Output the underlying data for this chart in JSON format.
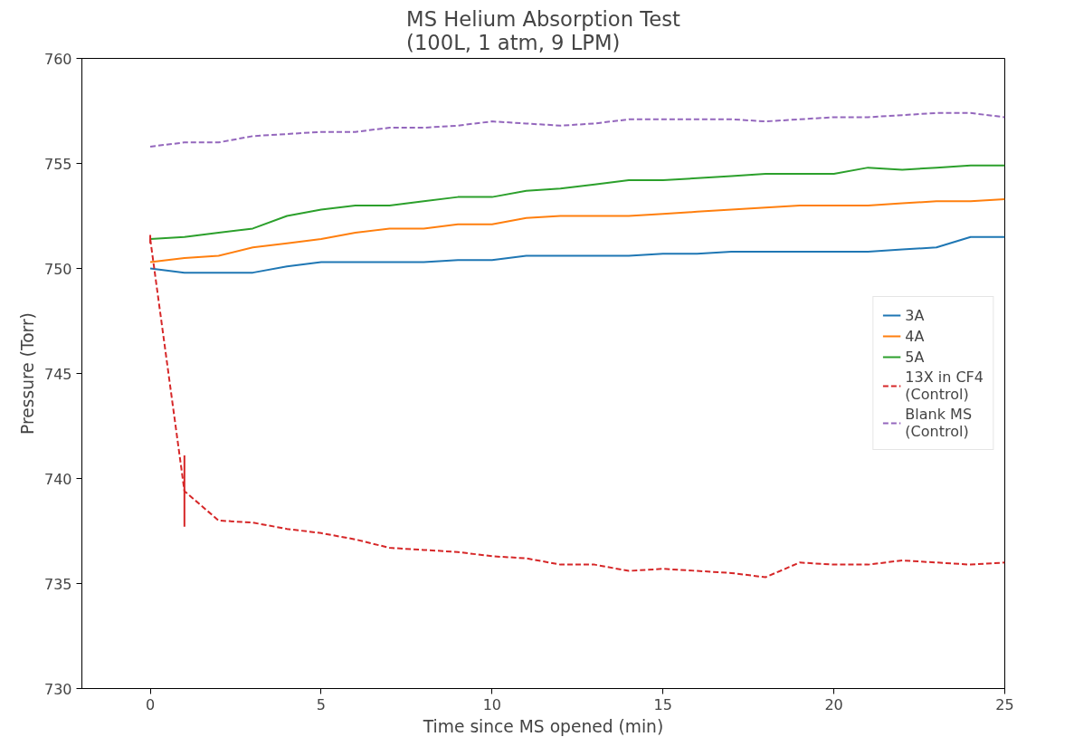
{
  "chart_data": {
    "type": "line",
    "title": "MS Helium Absorption Test\n(100L, 1 atm, 9 LPM)",
    "xlabel": "Time since MS opened (min)",
    "ylabel": "Pressure (Torr)",
    "x": [
      0,
      1,
      2,
      3,
      4,
      5,
      6,
      7,
      8,
      9,
      10,
      11,
      12,
      13,
      14,
      15,
      16,
      17,
      18,
      19,
      20,
      21,
      22,
      23,
      24,
      25
    ],
    "xlim": [
      -2,
      25
    ],
    "xticks": [
      0,
      5,
      10,
      15,
      20,
      25
    ],
    "ylim": [
      730,
      760
    ],
    "yticks": [
      730,
      735,
      740,
      745,
      750,
      755,
      760
    ],
    "grid": false,
    "legend": "center right",
    "series": [
      {
        "name": "3A",
        "color": "#1f77b4",
        "line_style": "solid",
        "values": [
          750.0,
          749.8,
          749.8,
          749.8,
          750.1,
          750.3,
          750.3,
          750.3,
          750.3,
          750.4,
          750.4,
          750.6,
          750.6,
          750.6,
          750.6,
          750.7,
          750.7,
          750.8,
          750.8,
          750.8,
          750.8,
          750.8,
          750.9,
          751.0,
          751.5,
          751.5
        ]
      },
      {
        "name": "4A",
        "color": "#ff7f0e",
        "line_style": "solid",
        "values": [
          750.3,
          750.5,
          750.6,
          751.0,
          751.2,
          751.4,
          751.7,
          751.9,
          751.9,
          752.1,
          752.1,
          752.4,
          752.5,
          752.5,
          752.5,
          752.6,
          752.7,
          752.8,
          752.9,
          753.0,
          753.0,
          753.0,
          753.1,
          753.2,
          753.2,
          753.3
        ]
      },
      {
        "name": "5A",
        "color": "#2ca02c",
        "line_style": "solid",
        "values": [
          751.4,
          751.5,
          751.7,
          751.9,
          752.5,
          752.8,
          753.0,
          753.0,
          753.2,
          753.4,
          753.4,
          753.7,
          753.8,
          754.0,
          754.2,
          754.2,
          754.3,
          754.4,
          754.5,
          754.5,
          754.5,
          754.8,
          754.7,
          754.8,
          754.9,
          754.9
        ]
      },
      {
        "name": "13X in CF4\n(Control)",
        "color": "#d62728",
        "line_style": "dashed",
        "values": [
          751.4,
          739.4,
          738.0,
          737.9,
          737.6,
          737.4,
          737.1,
          736.7,
          736.6,
          736.5,
          736.3,
          736.2,
          735.9,
          735.9,
          735.6,
          735.7,
          735.6,
          735.5,
          735.3,
          736.0,
          735.9,
          735.9,
          736.1,
          736.0,
          735.9,
          736.0
        ],
        "errors": [
          0.2,
          1.7,
          null,
          null,
          null,
          null,
          null,
          null,
          null,
          null,
          null,
          null,
          null,
          null,
          null,
          null,
          null,
          null,
          null,
          null,
          null,
          null,
          null,
          null,
          null,
          null
        ]
      },
      {
        "name": "Blank MS\n(Control)",
        "color": "#9467bd",
        "line_style": "dashed",
        "values": [
          755.8,
          756.0,
          756.0,
          756.3,
          756.4,
          756.5,
          756.5,
          756.7,
          756.7,
          756.8,
          757.0,
          756.9,
          756.8,
          756.9,
          757.1,
          757.1,
          757.1,
          757.1,
          757.0,
          757.1,
          757.2,
          757.2,
          757.3,
          757.4,
          757.4,
          757.2
        ]
      }
    ]
  }
}
